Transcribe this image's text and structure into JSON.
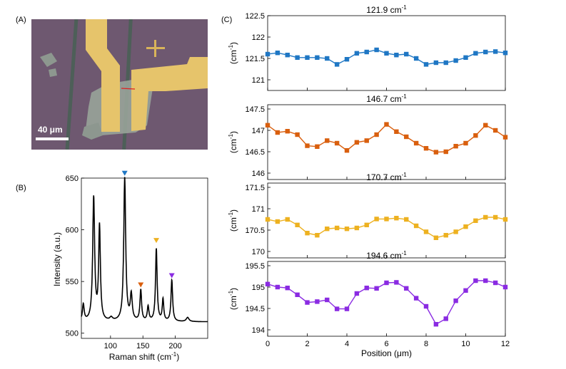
{
  "panel_labels": {
    "a": "(A)",
    "b": "(B)",
    "c": "(C)"
  },
  "micrograph": {
    "scale_bar_label": "40 μm"
  },
  "colors": {
    "blue": "#1f77c4",
    "orange": "#d95f0e",
    "yellow": "#edb120",
    "purple": "#8a2be2",
    "substrate": "#6e5870",
    "gold": "#e6c46b",
    "flake": "#9aa59a"
  },
  "chart_data": [
    {
      "type": "line",
      "panel": "(B)",
      "xlabel": "Raman shift (cm",
      "xlabel_sup": "-1",
      "xlabel_tail": ")",
      "ylabel": "Intensity (a.u.)",
      "xlim": [
        55,
        250
      ],
      "ylim": [
        495,
        650
      ],
      "xticks": [
        "100",
        "150",
        "200"
      ],
      "yticks": [
        "500",
        "550",
        "600",
        "650"
      ],
      "baseline": 511,
      "peaks": [
        {
          "x": 58,
          "h": 16,
          "w": 1.6
        },
        {
          "x": 74,
          "h": 119,
          "w": 1.8
        },
        {
          "x": 83,
          "h": 91,
          "w": 1.6
        },
        {
          "x": 101,
          "h": 3,
          "w": 2.5
        },
        {
          "x": 121.9,
          "h": 139,
          "w": 1.8
        },
        {
          "x": 132,
          "h": 25,
          "w": 1.8
        },
        {
          "x": 146.7,
          "h": 30,
          "w": 1.5
        },
        {
          "x": 158,
          "h": 14,
          "w": 1.5
        },
        {
          "x": 170.7,
          "h": 70,
          "w": 1.5
        },
        {
          "x": 181,
          "h": 21,
          "w": 1.4
        },
        {
          "x": 194.6,
          "h": 40,
          "w": 1.5
        },
        {
          "x": 219,
          "h": 4,
          "w": 2.5
        }
      ],
      "markers": [
        {
          "x": 121.9,
          "y": 655,
          "color": "#1f77c4"
        },
        {
          "x": 146.7,
          "y": 547,
          "color": "#d95f0e"
        },
        {
          "x": 170.7,
          "y": 590,
          "color": "#edb120"
        },
        {
          "x": 194.6,
          "y": 556,
          "color": "#8a2be2"
        }
      ]
    },
    {
      "type": "line",
      "panel": "(C)",
      "title": "121.9 cm",
      "title_sup": "-1",
      "ylabel": "(cm",
      "ylabel_sup": "-1",
      "ylabel_tail": ")",
      "color": "#1f77c4",
      "ylim": [
        120.75,
        122.5
      ],
      "yticks": [
        "121",
        "121.5",
        "122",
        "122.5"
      ],
      "x": [
        0,
        0.5,
        1,
        1.5,
        2,
        2.5,
        3,
        3.5,
        4,
        4.5,
        5,
        5.5,
        6,
        6.5,
        7,
        7.5,
        8,
        8.5,
        9,
        9.5,
        10,
        10.5,
        11,
        11.5,
        12
      ],
      "values": [
        121.6,
        121.63,
        121.58,
        121.52,
        121.52,
        121.52,
        121.5,
        121.36,
        121.48,
        121.62,
        121.65,
        121.7,
        121.62,
        121.58,
        121.6,
        121.5,
        121.36,
        121.4,
        121.4,
        121.45,
        121.52,
        121.62,
        121.65,
        121.66,
        121.63
      ]
    },
    {
      "type": "line",
      "panel": "(C)",
      "title": "146.7 cm",
      "title_sup": "-1",
      "ylabel": "(cm",
      "ylabel_sup": "-1",
      "ylabel_tail": ")",
      "color": "#d95f0e",
      "ylim": [
        145.85,
        147.6
      ],
      "yticks": [
        "146",
        "146.5",
        "147",
        "147.5"
      ],
      "x": [
        0,
        0.5,
        1,
        1.5,
        2,
        2.5,
        3,
        3.5,
        4,
        4.5,
        5,
        5.5,
        6,
        6.5,
        7,
        7.5,
        8,
        8.5,
        9,
        9.5,
        10,
        10.5,
        11,
        11.5,
        12
      ],
      "values": [
        147.12,
        146.95,
        146.98,
        146.9,
        146.64,
        146.62,
        146.76,
        146.7,
        146.53,
        146.72,
        146.76,
        146.9,
        147.14,
        146.97,
        146.85,
        146.7,
        146.58,
        146.49,
        146.5,
        146.63,
        146.7,
        146.88,
        147.12,
        147.0,
        146.84
      ]
    },
    {
      "type": "line",
      "panel": "(C)",
      "title": "170.7 cm",
      "title_sup": "-1",
      "ylabel": "(cm",
      "ylabel_sup": "-1",
      "ylabel_tail": ")",
      "color": "#edb120",
      "ylim": [
        169.85,
        171.6
      ],
      "yticks": [
        "170",
        "170.5",
        "171",
        "171.5"
      ],
      "x": [
        0,
        0.5,
        1,
        1.5,
        2,
        2.5,
        3,
        3.5,
        4,
        4.5,
        5,
        5.5,
        6,
        6.5,
        7,
        7.5,
        8,
        8.5,
        9,
        9.5,
        10,
        10.5,
        11,
        11.5,
        12
      ],
      "values": [
        170.75,
        170.7,
        170.75,
        170.62,
        170.43,
        170.38,
        170.53,
        170.55,
        170.53,
        170.55,
        170.62,
        170.76,
        170.76,
        170.78,
        170.75,
        170.6,
        170.46,
        170.32,
        170.38,
        170.46,
        170.58,
        170.72,
        170.8,
        170.8,
        170.75
      ]
    },
    {
      "type": "line",
      "panel": "(C)",
      "title": "194.6 cm",
      "title_sup": "-1",
      "ylabel": "(cm",
      "ylabel_sup": "-1",
      "ylabel_tail": ")",
      "color": "#8a2be2",
      "xlabel": "Position (μm)",
      "xticks": [
        "0",
        "2",
        "4",
        "6",
        "8",
        "10",
        "12"
      ],
      "ylim": [
        193.85,
        195.6
      ],
      "yticks": [
        "194",
        "194.5",
        "195",
        "195.5"
      ],
      "x": [
        0,
        0.5,
        1,
        1.5,
        2,
        2.5,
        3,
        3.5,
        4,
        4.5,
        5,
        5.5,
        6,
        6.5,
        7,
        7.5,
        8,
        8.5,
        9,
        9.5,
        10,
        10.5,
        11,
        11.5,
        12
      ],
      "values": [
        195.07,
        195.0,
        194.98,
        194.82,
        194.64,
        194.66,
        194.7,
        194.49,
        194.49,
        194.85,
        194.98,
        194.97,
        195.1,
        195.11,
        194.97,
        194.74,
        194.55,
        194.13,
        194.26,
        194.68,
        194.92,
        195.15,
        195.15,
        195.1,
        195.0
      ]
    }
  ]
}
